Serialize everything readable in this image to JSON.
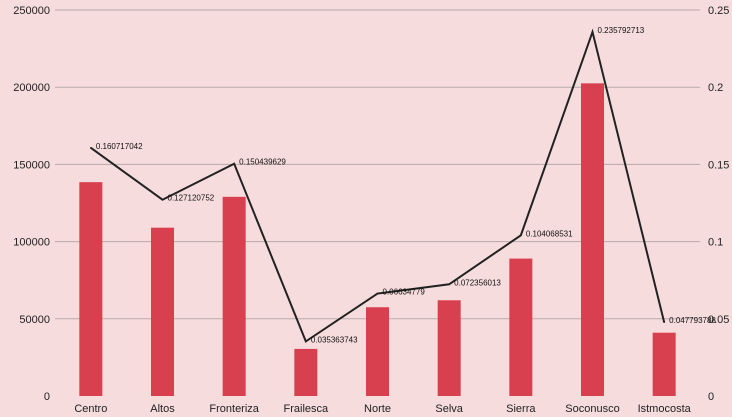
{
  "chart_data": {
    "type": "bar",
    "categories": [
      "Centro",
      "Altos",
      "Fronteriza",
      "Frailesca",
      "Norte",
      "Selva",
      "Sierra",
      "Soconusco",
      "Istmocosta"
    ],
    "series": [
      {
        "type": "bar",
        "axis": "left",
        "values": [
          138500,
          109000,
          129000,
          30500,
          57500,
          62000,
          89000,
          202500,
          41000
        ]
      },
      {
        "type": "line",
        "axis": "right",
        "values": [
          0.160717042,
          0.127120752,
          0.150439629,
          0.035363743,
          0.06634779,
          0.072356013,
          0.104068531,
          0.235792713,
          0.047793788
        ],
        "labels": [
          "0.160717042",
          "0.127120752",
          "0.150439629",
          "0.035363743",
          "0.06634779",
          "0.072356013",
          "0.104068531",
          "0.235792713",
          "0.047793788"
        ]
      }
    ],
    "y_left": {
      "range": [
        0,
        250000
      ],
      "ticks": [
        "0",
        "50000",
        "100000",
        "150000",
        "200000",
        "250000"
      ]
    },
    "y_right": {
      "range": [
        0,
        0.25
      ],
      "ticks": [
        "0",
        "0.05",
        "0.1",
        "0.15",
        "0.2",
        "0.25"
      ]
    },
    "title": "",
    "xlabel": "",
    "ylabel": "",
    "grid": true,
    "legend": "none"
  },
  "colors": {
    "background": "#f6dcdc",
    "bar": "#d9404f",
    "line": "#222222",
    "grid": "#b9a9ab"
  }
}
